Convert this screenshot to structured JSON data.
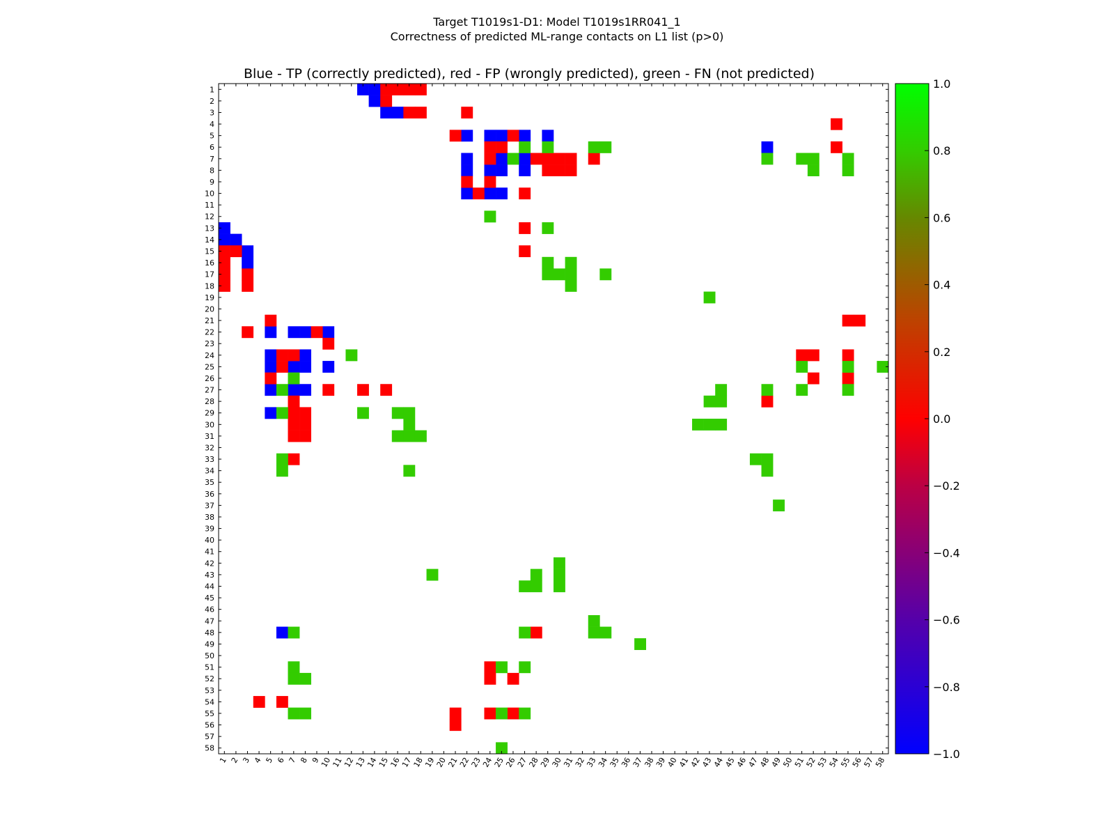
{
  "chart_data": {
    "type": "heatmap",
    "title_line1": "Target T1019s1-D1: Model T1019s1RR041_1",
    "title_line2": "Correctness of predicted ML-range contacts on L1 list (p>0)",
    "plot_title": "Blue - TP (correctly predicted), red - FP (wrongly predicted), green - FN (not predicted)",
    "n": 58,
    "tick_labels": [
      "1",
      "2",
      "3",
      "4",
      "5",
      "6",
      "7",
      "8",
      "9",
      "10",
      "11",
      "12",
      "13",
      "14",
      "15",
      "16",
      "17",
      "18",
      "19",
      "20",
      "21",
      "22",
      "23",
      "24",
      "25",
      "26",
      "27",
      "28",
      "29",
      "30",
      "31",
      "32",
      "33",
      "34",
      "35",
      "36",
      "37",
      "38",
      "39",
      "40",
      "41",
      "42",
      "43",
      "44",
      "45",
      "46",
      "47",
      "48",
      "49",
      "50",
      "51",
      "52",
      "53",
      "54",
      "55",
      "56",
      "57",
      "58"
    ],
    "legend": {
      "tp": "Blue - TP (correctly predicted)",
      "fp": "red - FP (wrongly predicted)",
      "fn": "green - FN (not predicted)"
    },
    "value_map": {
      "tp": -1.0,
      "fp": 0.0,
      "fn": 0.8
    },
    "colors": {
      "tp": "#0000ff",
      "fp": "#ff0000",
      "fn": "#33cc00",
      "fn_dark": "#4ec81e"
    },
    "colorbar": {
      "min": -1.0,
      "max": 1.0,
      "ticks": [
        "−1.0",
        "−0.8",
        "−0.6",
        "−0.4",
        "−0.2",
        "0.0",
        "0.2",
        "0.4",
        "0.6",
        "0.8",
        "1.0"
      ],
      "tick_values": [
        -1.0,
        -0.8,
        -0.6,
        -0.4,
        -0.2,
        0.0,
        0.2,
        0.4,
        0.6,
        0.8,
        1.0
      ],
      "gradient_stops": [
        {
          "v": -1.0,
          "color": "#0000ff"
        },
        {
          "v": -0.6,
          "color": "#5500aa"
        },
        {
          "v": -0.2,
          "color": "#bb0044"
        },
        {
          "v": 0.0,
          "color": "#ff0000"
        },
        {
          "v": 0.3,
          "color": "#bb4400"
        },
        {
          "v": 0.6,
          "color": "#668800"
        },
        {
          "v": 0.8,
          "color": "#33cc00"
        },
        {
          "v": 1.0,
          "color": "#00ff00"
        }
      ]
    },
    "tp": [
      [
        1,
        13
      ],
      [
        1,
        14
      ],
      [
        2,
        14
      ],
      [
        3,
        15
      ],
      [
        3,
        16
      ],
      [
        5,
        22
      ],
      [
        5,
        24
      ],
      [
        5,
        25
      ],
      [
        5,
        27
      ],
      [
        5,
        29
      ],
      [
        6,
        48
      ],
      [
        7,
        22
      ],
      [
        7,
        25
      ],
      [
        7,
        27
      ],
      [
        8,
        22
      ],
      [
        8,
        24
      ],
      [
        8,
        25
      ],
      [
        8,
        27
      ],
      [
        10,
        22
      ],
      [
        10,
        24
      ],
      [
        10,
        25
      ],
      [
        13,
        1
      ],
      [
        14,
        1
      ],
      [
        14,
        2
      ],
      [
        15,
        3
      ],
      [
        16,
        3
      ],
      [
        22,
        5
      ],
      [
        22,
        7
      ],
      [
        22,
        8
      ],
      [
        22,
        10
      ],
      [
        24,
        5
      ],
      [
        24,
        8
      ],
      [
        25,
        5
      ],
      [
        25,
        7
      ],
      [
        25,
        8
      ],
      [
        25,
        10
      ],
      [
        27,
        5
      ],
      [
        27,
        7
      ],
      [
        27,
        8
      ],
      [
        29,
        5
      ],
      [
        48,
        6
      ]
    ],
    "fp": [
      [
        1,
        15
      ],
      [
        1,
        16
      ],
      [
        1,
        17
      ],
      [
        1,
        18
      ],
      [
        2,
        15
      ],
      [
        3,
        17
      ],
      [
        3,
        18
      ],
      [
        3,
        22
      ],
      [
        4,
        54
      ],
      [
        5,
        21
      ],
      [
        5,
        26
      ],
      [
        6,
        24
      ],
      [
        6,
        25
      ],
      [
        6,
        54
      ],
      [
        7,
        24
      ],
      [
        7,
        28
      ],
      [
        7,
        29
      ],
      [
        7,
        30
      ],
      [
        7,
        31
      ],
      [
        7,
        33
      ],
      [
        8,
        29
      ],
      [
        8,
        30
      ],
      [
        8,
        31
      ],
      [
        9,
        22
      ],
      [
        9,
        24
      ],
      [
        10,
        23
      ],
      [
        10,
        27
      ],
      [
        13,
        27
      ],
      [
        15,
        1
      ],
      [
        15,
        2
      ],
      [
        15,
        27
      ],
      [
        16,
        1
      ],
      [
        17,
        1
      ],
      [
        17,
        3
      ],
      [
        18,
        1
      ],
      [
        18,
        3
      ],
      [
        21,
        5
      ],
      [
        21,
        55
      ],
      [
        21,
        56
      ],
      [
        22,
        3
      ],
      [
        22,
        9
      ],
      [
        23,
        10
      ],
      [
        24,
        6
      ],
      [
        24,
        7
      ],
      [
        24,
        51
      ],
      [
        24,
        52
      ],
      [
        24,
        55
      ],
      [
        25,
        6
      ],
      [
        26,
        5
      ],
      [
        26,
        52
      ],
      [
        26,
        55
      ],
      [
        27,
        10
      ],
      [
        27,
        13
      ],
      [
        27,
        15
      ],
      [
        28,
        7
      ],
      [
        28,
        48
      ],
      [
        29,
        7
      ],
      [
        29,
        8
      ],
      [
        30,
        7
      ],
      [
        30,
        8
      ],
      [
        31,
        7
      ],
      [
        31,
        8
      ],
      [
        33,
        7
      ],
      [
        48,
        28
      ],
      [
        51,
        24
      ],
      [
        52,
        24
      ],
      [
        52,
        26
      ],
      [
        54,
        4
      ],
      [
        54,
        6
      ],
      [
        55,
        21
      ],
      [
        55,
        24
      ],
      [
        55,
        26
      ],
      [
        56,
        21
      ]
    ],
    "fn": [
      [
        6,
        27
      ],
      [
        6,
        29
      ],
      [
        6,
        33
      ],
      [
        6,
        34
      ],
      [
        7,
        26
      ],
      [
        7,
        48
      ],
      [
        7,
        51
      ],
      [
        7,
        52
      ],
      [
        7,
        55
      ],
      [
        8,
        52
      ],
      [
        8,
        55
      ],
      [
        12,
        24
      ],
      [
        13,
        29
      ],
      [
        16,
        29
      ],
      [
        16,
        31
      ],
      [
        17,
        29
      ],
      [
        17,
        30
      ],
      [
        17,
        31
      ],
      [
        17,
        34
      ],
      [
        18,
        31
      ],
      [
        19,
        43
      ],
      [
        24,
        12
      ],
      [
        25,
        51
      ],
      [
        25,
        55
      ],
      [
        25,
        58
      ],
      [
        26,
        7
      ],
      [
        27,
        6
      ],
      [
        27,
        44
      ],
      [
        27,
        48
      ],
      [
        27,
        51
      ],
      [
        27,
        55
      ],
      [
        28,
        43
      ],
      [
        28,
        44
      ],
      [
        29,
        6
      ],
      [
        29,
        13
      ],
      [
        29,
        16
      ],
      [
        29,
        17
      ],
      [
        30,
        17
      ],
      [
        30,
        42
      ],
      [
        30,
        43
      ],
      [
        30,
        44
      ],
      [
        31,
        16
      ],
      [
        31,
        17
      ],
      [
        31,
        18
      ],
      [
        33,
        6
      ],
      [
        33,
        47
      ],
      [
        33,
        48
      ],
      [
        34,
        6
      ],
      [
        34,
        17
      ],
      [
        34,
        48
      ],
      [
        37,
        49
      ],
      [
        42,
        30
      ],
      [
        43,
        19
      ],
      [
        43,
        28
      ],
      [
        43,
        30
      ],
      [
        44,
        27
      ],
      [
        44,
        28
      ],
      [
        44,
        30
      ],
      [
        47,
        33
      ],
      [
        48,
        7
      ],
      [
        48,
        27
      ],
      [
        48,
        33
      ],
      [
        48,
        34
      ],
      [
        49,
        37
      ],
      [
        51,
        7
      ],
      [
        51,
        25
      ],
      [
        51,
        27
      ],
      [
        52,
        7
      ],
      [
        52,
        8
      ],
      [
        55,
        7
      ],
      [
        55,
        8
      ],
      [
        55,
        25
      ],
      [
        55,
        27
      ],
      [
        58,
        25
      ]
    ]
  }
}
